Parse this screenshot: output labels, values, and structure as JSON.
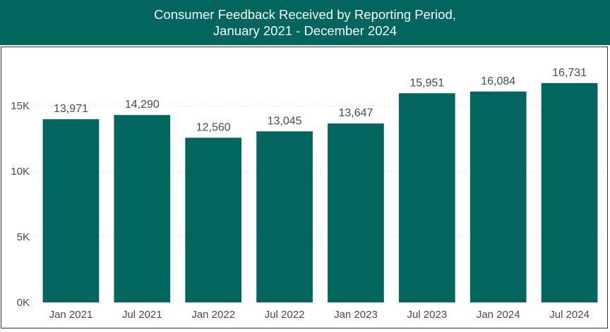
{
  "header": {
    "title_line1": "Consumer Feedback Received by Reporting Period,",
    "title_line2": "January 2021 - December 2024"
  },
  "colors": {
    "header_bg": "#00665e",
    "bar": "#00665e",
    "text": "#4a4a4a"
  },
  "chart_data": {
    "type": "bar",
    "title": "Consumer Feedback Received by Reporting Period, January 2021 - December 2024",
    "xlabel": "",
    "ylabel": "",
    "categories": [
      "Jan 2021",
      "Jul 2021",
      "Jan 2022",
      "Jul 2022",
      "Jan 2023",
      "Jul 2023",
      "Jan 2024",
      "Jul 2024"
    ],
    "values": [
      13971,
      14290,
      12560,
      13045,
      13647,
      15951,
      16084,
      16731
    ],
    "data_labels": [
      "13,971",
      "14,290",
      "12,560",
      "13,045",
      "13,647",
      "15,951",
      "16,084",
      "16,731"
    ],
    "ylim": [
      0,
      17000
    ],
    "yticks": [
      0,
      5000,
      10000,
      15000
    ],
    "ytick_labels": [
      "0K",
      "5K",
      "10K",
      "15K"
    ],
    "grid": true,
    "legend": "none"
  }
}
